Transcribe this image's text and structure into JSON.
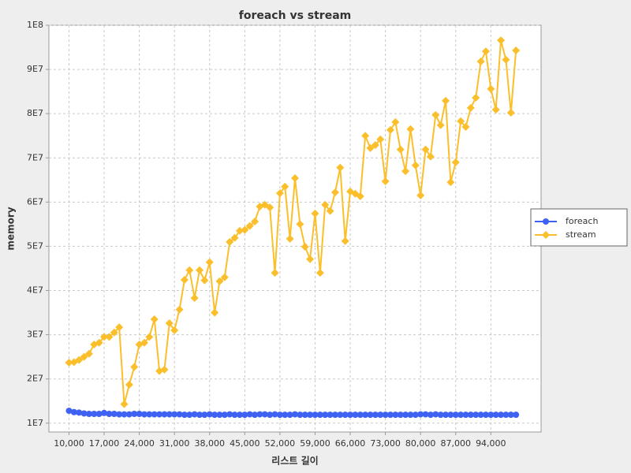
{
  "chart_data": {
    "type": "line",
    "title": "foreach vs stream",
    "x_label": "리스트 길이",
    "y_label": "memory",
    "x": [
      10000,
      11000,
      12000,
      13000,
      14000,
      15000,
      16000,
      17000,
      18000,
      19000,
      20000,
      21000,
      22000,
      23000,
      24000,
      25000,
      26000,
      27000,
      28000,
      29000,
      30000,
      31000,
      32000,
      33000,
      34000,
      35000,
      36000,
      37000,
      38000,
      39000,
      40000,
      41000,
      42000,
      43000,
      44000,
      45000,
      46000,
      47000,
      48000,
      49000,
      50000,
      51000,
      52000,
      53000,
      54000,
      55000,
      56000,
      57000,
      58000,
      59000,
      60000,
      61000,
      62000,
      63000,
      64000,
      65000,
      66000,
      67000,
      68000,
      69000,
      70000,
      71000,
      72000,
      73000,
      74000,
      75000,
      76000,
      77000,
      78000,
      79000,
      80000,
      81000,
      82000,
      83000,
      84000,
      85000,
      86000,
      87000,
      88000,
      89000,
      90000,
      91000,
      92000,
      93000,
      94000,
      95000,
      96000,
      97000,
      98000,
      99000
    ],
    "series": [
      {
        "name": "foreach",
        "color": "#3f62f2",
        "marker": "circle",
        "values": [
          12800000,
          12500000,
          12400000,
          12200000,
          12100000,
          12100000,
          12100000,
          12300000,
          12100000,
          12100000,
          12000000,
          12000000,
          12000000,
          12100000,
          12100000,
          12000000,
          12000000,
          12000000,
          12000000,
          12000000,
          12000000,
          12000000,
          12000000,
          11900000,
          11900000,
          12000000,
          11900000,
          11900000,
          12000000,
          11900000,
          11900000,
          11900000,
          12000000,
          11900000,
          11900000,
          11900000,
          12000000,
          11900000,
          12000000,
          12000000,
          11900000,
          12000000,
          11900000,
          11900000,
          11900000,
          12000000,
          11900000,
          11900000,
          11900000,
          11900000,
          11900000,
          11900000,
          11900000,
          11900000,
          11900000,
          11900000,
          11900000,
          11900000,
          11900000,
          11900000,
          11900000,
          11900000,
          11900000,
          11900000,
          11900000,
          11900000,
          11900000,
          11900000,
          11900000,
          11900000,
          12000000,
          12000000,
          11900000,
          12000000,
          11900000,
          11900000,
          11900000,
          11900000,
          11900000,
          11900000,
          11900000,
          11900000,
          11900000,
          11900000,
          11900000,
          11900000,
          11900000,
          11900000,
          11900000,
          11900000
        ]
      },
      {
        "name": "stream",
        "color": "#fbbf2c",
        "marker": "diamond",
        "values": [
          23700000,
          23800000,
          24300000,
          25000000,
          25700000,
          27800000,
          28200000,
          29500000,
          29500000,
          30500000,
          31700000,
          14300000,
          18700000,
          22700000,
          27800000,
          28200000,
          29500000,
          33500000,
          21800000,
          22100000,
          32600000,
          31000000,
          35700000,
          42400000,
          44600000,
          38300000,
          44600000,
          42300000,
          46400000,
          35000000,
          42100000,
          43000000,
          51000000,
          51900000,
          53500000,
          53700000,
          54600000,
          55600000,
          59000000,
          59400000,
          58800000,
          44000000,
          62000000,
          63500000,
          51700000,
          65400000,
          55000000,
          49900000,
          47100000,
          57400000,
          44000000,
          59400000,
          58000000,
          62200000,
          67800000,
          51200000,
          62400000,
          61900000,
          61300000,
          75000000,
          72200000,
          72900000,
          74200000,
          64700000,
          76300000,
          78100000,
          71900000,
          67000000,
          76500000,
          68300000,
          61500000,
          71900000,
          70300000,
          79700000,
          77400000,
          82900000,
          64500000,
          69000000,
          78300000,
          77000000,
          81300000,
          83600000,
          91800000,
          94100000,
          85600000,
          80900000,
          96600000,
          92200000,
          80200000,
          94300000
        ]
      }
    ],
    "xlim": [
      6000,
      104000
    ],
    "xticks": [
      {
        "value": 10000,
        "label": "10,000"
      },
      {
        "value": 17000,
        "label": "17,000"
      },
      {
        "value": 24000,
        "label": "24,000"
      },
      {
        "value": 31000,
        "label": "31,000"
      },
      {
        "value": 38000,
        "label": "38,000"
      },
      {
        "value": 45000,
        "label": "45,000"
      },
      {
        "value": 52000,
        "label": "52,000"
      },
      {
        "value": 59000,
        "label": "59,000"
      },
      {
        "value": 66000,
        "label": "66,000"
      },
      {
        "value": 73000,
        "label": "73,000"
      },
      {
        "value": 80000,
        "label": "80,000"
      },
      {
        "value": 87000,
        "label": "87,000"
      },
      {
        "value": 94000,
        "label": "94,000"
      }
    ],
    "ylim": [
      8000000,
      100000000
    ],
    "yticks": [
      {
        "value": 10000000,
        "label": "1E7"
      },
      {
        "value": 20000000,
        "label": "2E7"
      },
      {
        "value": 30000000,
        "label": "3E7"
      },
      {
        "value": 40000000,
        "label": "4E7"
      },
      {
        "value": 50000000,
        "label": "5E7"
      },
      {
        "value": 60000000,
        "label": "6E7"
      },
      {
        "value": 70000000,
        "label": "7E7"
      },
      {
        "value": 80000000,
        "label": "8E7"
      },
      {
        "value": 90000000,
        "label": "9E7"
      },
      {
        "value": 100000000,
        "label": "1E8"
      }
    ],
    "grid": true,
    "legend": "right"
  }
}
